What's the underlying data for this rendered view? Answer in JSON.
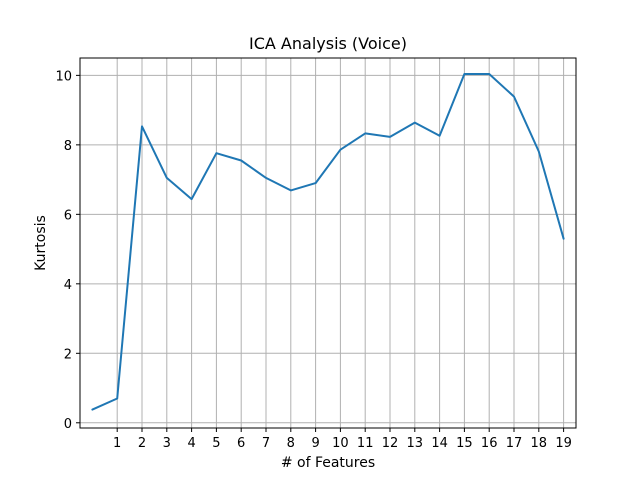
{
  "chart_data": {
    "type": "line",
    "title": "ICA Analysis (Voice)",
    "xlabel": "# of Features",
    "ylabel": "Kurtosis",
    "x_ticks": [
      1,
      2,
      3,
      4,
      5,
      6,
      7,
      8,
      9,
      10,
      11,
      12,
      13,
      14,
      15,
      16,
      17,
      18,
      19
    ],
    "y_ticks": [
      0,
      2,
      4,
      6,
      8,
      10
    ],
    "xlim": [
      -0.5,
      19.5
    ],
    "ylim": [
      -0.15,
      10.5
    ],
    "grid": true,
    "series": [
      {
        "x": [
          0,
          1,
          2,
          3,
          4,
          5,
          6,
          7,
          8,
          9,
          10,
          11,
          12,
          13,
          14,
          15,
          16,
          17,
          18,
          19
        ],
        "values": [
          0.38,
          0.7,
          8.53,
          7.05,
          6.44,
          7.76,
          7.55,
          7.05,
          6.69,
          6.9,
          7.86,
          8.33,
          8.23,
          8.64,
          8.26,
          10.04,
          10.04,
          9.39,
          7.81,
          5.3
        ],
        "color": "#1f77b4"
      }
    ]
  }
}
